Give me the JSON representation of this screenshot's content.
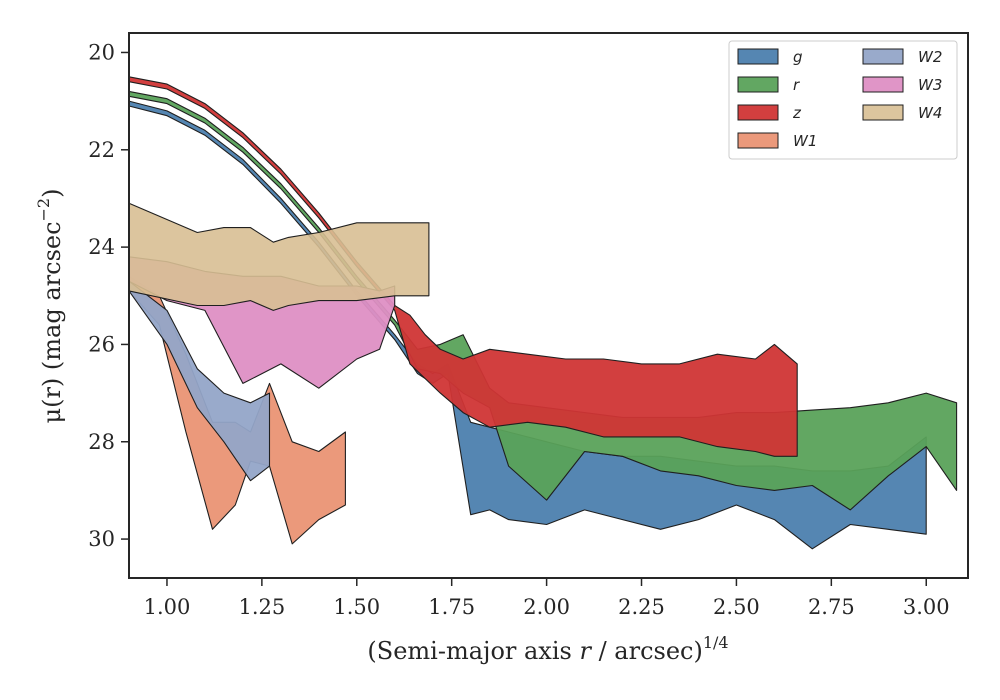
{
  "chart_data": {
    "type": "area",
    "title": "",
    "xlabel": "(Semi-major axis ",
    "xlabel_var": "r",
    "xlabel_tail": " / arcsec)",
    "xlabel_sup": "1/4",
    "ylabel": "μ(r) (mag arcsec",
    "ylabel_sup": "−2",
    "ylabel_tail": ")",
    "xlim": [
      0.9,
      3.11
    ],
    "ylim": [
      30.8,
      19.6
    ],
    "y_inverted": true,
    "x_ticks": [
      1.0,
      1.25,
      1.5,
      1.75,
      2.0,
      2.25,
      2.5,
      2.75,
      3.0
    ],
    "x_tick_labels": [
      "1.00",
      "1.25",
      "1.50",
      "1.75",
      "2.00",
      "2.25",
      "2.50",
      "2.75",
      "3.00"
    ],
    "y_ticks": [
      20,
      22,
      24,
      26,
      28,
      30
    ],
    "y_tick_labels": [
      "20",
      "22",
      "24",
      "26",
      "28",
      "30"
    ],
    "grid": false,
    "legend_position": "top-right",
    "legend_columns": 2,
    "series": [
      {
        "name": "g",
        "color": "#4c7fae",
        "alpha": 0.95,
        "x": [
          0.9,
          1.0,
          1.1,
          1.2,
          1.3,
          1.4,
          1.5,
          1.6,
          1.66,
          1.7,
          1.74,
          1.8,
          1.85,
          1.9,
          2.0,
          2.1,
          2.2,
          2.3,
          2.4,
          2.5,
          2.6,
          2.7,
          2.8,
          2.9,
          3.0
        ],
        "lower": [
          21.0,
          21.2,
          21.6,
          22.2,
          23.0,
          23.9,
          24.9,
          25.8,
          26.4,
          26.6,
          26.4,
          27.6,
          27.7,
          27.8,
          28.0,
          28.2,
          28.3,
          28.3,
          28.4,
          28.5,
          28.5,
          28.6,
          28.6,
          28.5,
          27.9
        ],
        "upper": [
          21.1,
          21.3,
          21.7,
          22.3,
          23.1,
          24.0,
          25.0,
          25.9,
          26.6,
          26.8,
          26.6,
          29.5,
          29.4,
          29.6,
          29.7,
          29.4,
          29.6,
          29.8,
          29.6,
          29.3,
          29.6,
          30.2,
          29.7,
          29.8,
          29.9
        ]
      },
      {
        "name": "r",
        "color": "#5aa25a",
        "alpha": 0.95,
        "x": [
          0.9,
          1.0,
          1.1,
          1.2,
          1.3,
          1.4,
          1.5,
          1.6,
          1.66,
          1.72,
          1.78,
          1.85,
          1.9,
          2.0,
          2.1,
          2.2,
          2.3,
          2.4,
          2.5,
          2.6,
          2.7,
          2.8,
          2.9,
          3.0,
          3.08
        ],
        "lower": [
          20.8,
          20.95,
          21.35,
          21.95,
          22.7,
          23.6,
          24.6,
          25.5,
          26.1,
          26.0,
          25.8,
          26.9,
          27.2,
          27.3,
          27.4,
          27.5,
          27.5,
          27.5,
          27.4,
          27.4,
          27.35,
          27.3,
          27.2,
          27.0,
          27.2
        ],
        "upper": [
          20.9,
          21.05,
          21.45,
          22.05,
          22.8,
          23.7,
          24.7,
          25.6,
          26.5,
          26.6,
          27.0,
          27.3,
          28.5,
          29.2,
          28.2,
          28.3,
          28.6,
          28.7,
          28.9,
          29.0,
          28.9,
          29.4,
          28.7,
          28.1,
          29.0
        ]
      },
      {
        "name": "z",
        "color": "#d03535",
        "alpha": 0.95,
        "x": [
          0.9,
          1.0,
          1.1,
          1.2,
          1.3,
          1.4,
          1.5,
          1.6,
          1.64,
          1.68,
          1.72,
          1.78,
          1.85,
          1.95,
          2.05,
          2.15,
          2.25,
          2.35,
          2.45,
          2.55,
          2.6,
          2.66
        ],
        "lower": [
          20.5,
          20.65,
          21.05,
          21.65,
          22.4,
          23.3,
          24.3,
          25.2,
          25.4,
          25.8,
          26.1,
          26.3,
          26.1,
          26.2,
          26.3,
          26.3,
          26.4,
          26.4,
          26.2,
          26.3,
          26.0,
          26.4
        ],
        "upper": [
          20.6,
          20.75,
          21.15,
          21.75,
          22.5,
          23.4,
          24.4,
          25.3,
          26.4,
          26.7,
          27.0,
          27.4,
          27.7,
          27.6,
          27.7,
          27.9,
          27.9,
          27.9,
          28.1,
          28.2,
          28.3,
          28.3
        ]
      },
      {
        "name": "W1",
        "color": "#ea9474",
        "alpha": 0.95,
        "x": [
          0.9,
          0.98,
          1.05,
          1.12,
          1.18,
          1.22,
          1.27,
          1.33,
          1.4,
          1.47
        ],
        "lower": [
          24.6,
          25.0,
          26.2,
          27.6,
          27.6,
          27.8,
          26.8,
          28.0,
          28.2,
          27.8
        ],
        "upper": [
          24.9,
          25.6,
          27.8,
          29.8,
          29.3,
          28.4,
          28.5,
          30.1,
          29.6,
          29.3
        ]
      },
      {
        "name": "W2",
        "color": "#94a5c8",
        "alpha": 0.95,
        "x": [
          0.9,
          1.0,
          1.08,
          1.15,
          1.22,
          1.27
        ],
        "lower": [
          24.7,
          25.3,
          26.5,
          27.0,
          27.2,
          27.0
        ],
        "upper": [
          24.9,
          26.0,
          27.3,
          28.0,
          28.8,
          28.5
        ]
      },
      {
        "name": "W3",
        "color": "#de8fc4",
        "alpha": 0.95,
        "x": [
          0.9,
          1.0,
          1.1,
          1.2,
          1.3,
          1.4,
          1.5,
          1.56,
          1.6
        ],
        "lower": [
          24.2,
          24.3,
          24.5,
          24.6,
          24.6,
          24.8,
          24.8,
          24.9,
          24.8
        ],
        "upper": [
          24.7,
          25.1,
          25.3,
          26.8,
          26.4,
          26.9,
          26.3,
          26.1,
          25.2
        ]
      },
      {
        "name": "W4",
        "color": "#d8bf94",
        "alpha": 0.9,
        "x": [
          0.9,
          1.08,
          1.15,
          1.22,
          1.28,
          1.32,
          1.4,
          1.5,
          1.6,
          1.69
        ],
        "lower": [
          23.1,
          23.7,
          23.6,
          23.6,
          23.9,
          23.8,
          23.7,
          23.5,
          23.5,
          23.5
        ],
        "upper": [
          24.9,
          25.2,
          25.2,
          25.1,
          25.3,
          25.2,
          25.1,
          25.1,
          25.0,
          25.0
        ]
      }
    ]
  }
}
